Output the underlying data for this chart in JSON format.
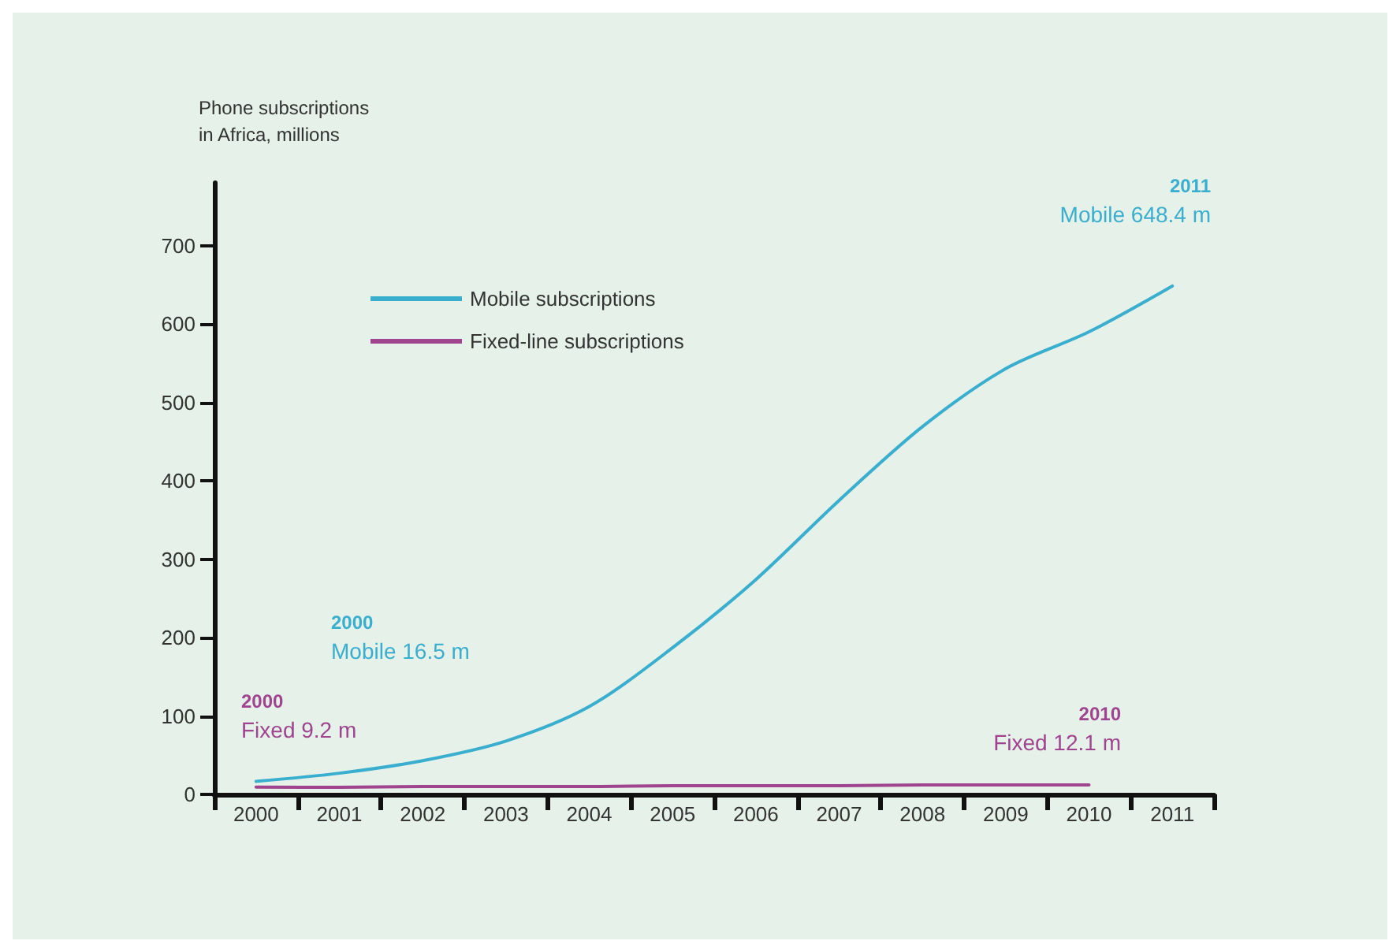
{
  "chart_data": {
    "type": "line",
    "ylabel": "Phone subscriptions\nin Africa, millions",
    "categories": [
      "2000",
      "2001",
      "2002",
      "2003",
      "2004",
      "2005",
      "2006",
      "2007",
      "2008",
      "2009",
      "2010",
      "2011"
    ],
    "series": [
      {
        "name": "Mobile subscriptions",
        "color": "#3aaecf",
        "values": [
          16.5,
          27,
          43,
          68,
          112,
          187,
          274,
          375,
          469,
          543,
          590,
          648.4
        ]
      },
      {
        "name": "Fixed-line subscriptions",
        "color": "#a0448f",
        "values": [
          9.2,
          9,
          10,
          10,
          10,
          11,
          11,
          11,
          12,
          12,
          12.1,
          null
        ]
      }
    ],
    "ylim": [
      0,
      780
    ],
    "yticks": [
      0,
      100,
      200,
      300,
      400,
      500,
      600,
      700
    ],
    "grid": false,
    "legend": "top left",
    "marker": "none",
    "line_style": "solid",
    "annotations": [
      "2000\nMobile 16.5 m",
      "2000\nFixed 9.2 m",
      "2010\nFixed 12.1 m",
      "2011\nMobile 648.4 m"
    ]
  }
}
